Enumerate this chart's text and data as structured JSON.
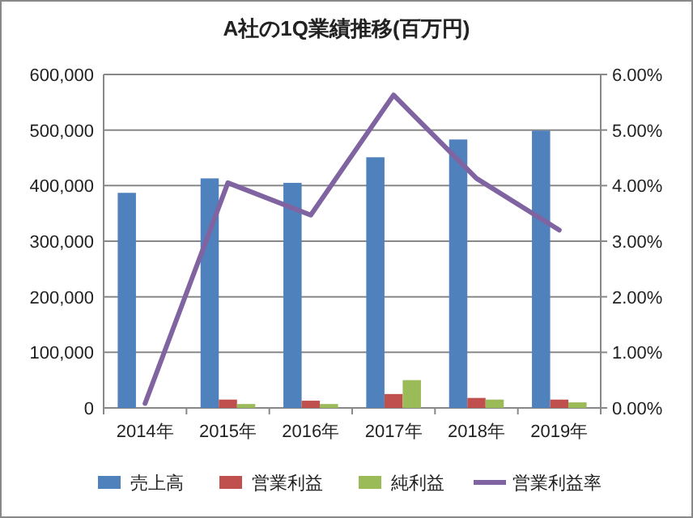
{
  "chart_data": {
    "type": "bar",
    "title": "A社の1Q業績推移(百万円)",
    "categories": [
      "2014年",
      "2015年",
      "2016年",
      "2017年",
      "2018年",
      "2019年"
    ],
    "series": [
      {
        "name": "売上高",
        "color": "#4f81bd",
        "values": [
          387000,
          413000,
          405000,
          451000,
          483000,
          499000
        ]
      },
      {
        "name": "営業利益",
        "color": "#c0504d",
        "values": [
          0,
          15000,
          13000,
          25000,
          18000,
          15000
        ]
      },
      {
        "name": "純利益",
        "color": "#9bbb59",
        "values": [
          0,
          7000,
          7000,
          50000,
          15000,
          10000
        ]
      },
      {
        "name": "営業利益率",
        "type": "line",
        "axis": "y2",
        "color": "#8064a2",
        "values": [
          0.08,
          4.05,
          3.47,
          5.63,
          4.13,
          3.2
        ]
      }
    ],
    "ylim": [
      0,
      600000
    ],
    "yticks": [
      0,
      {
        "value": 100000,
        "label": "100,000"
      },
      {
        "value": 200000,
        "label": "200,000"
      },
      {
        "value": 300000,
        "label": "300,000"
      },
      {
        "value": 400000,
        "label": "400,000"
      },
      {
        "value": 500000,
        "label": "500,000"
      },
      {
        "value": 600000,
        "label": "600,000"
      }
    ],
    "y2lim": [
      0,
      6
    ],
    "y2ticks": [
      {
        "value": 0,
        "label": "0.00%"
      },
      {
        "value": 1,
        "label": "1.00%"
      },
      {
        "value": 2,
        "label": "2.00%"
      },
      {
        "value": 3,
        "label": "3.00%"
      },
      {
        "value": 4,
        "label": "4.00%"
      },
      {
        "value": 5,
        "label": "5.00%"
      },
      {
        "value": 6,
        "label": "6.00%"
      }
    ],
    "grid": "y",
    "legend": "bottom",
    "marker": "none"
  }
}
